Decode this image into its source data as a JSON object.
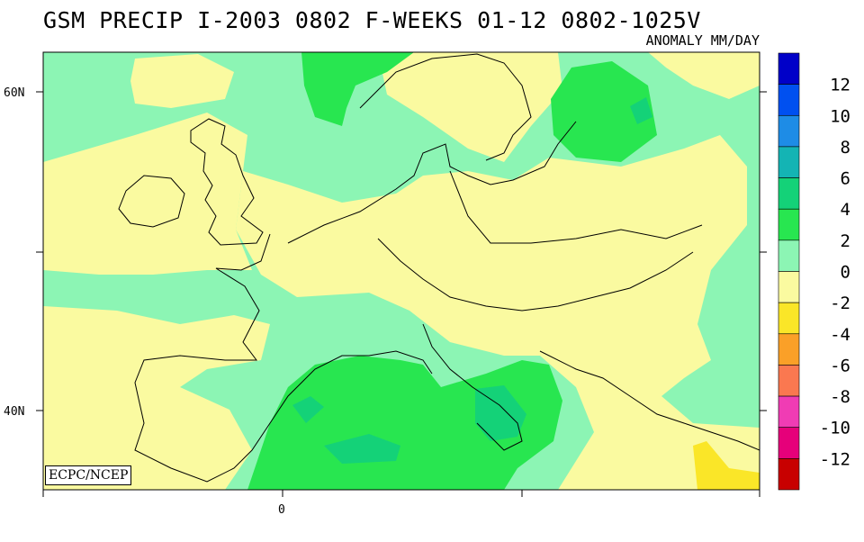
{
  "title": "GSM PRECIP  I-2003 0802 F-WEEKS 01-12 0802-1025V",
  "subtitle": "ANOMALY MM/DAY",
  "credit": "ECPC/NCEP",
  "axes": {
    "lat_labels": [
      "60N",
      "40N"
    ],
    "lon_labels": [
      "0"
    ]
  },
  "colorbar": {
    "labels": [
      "12",
      "10",
      "8",
      "6",
      "4",
      "2",
      "0",
      "-2",
      "-4",
      "-6",
      "-8",
      "-10",
      "-12"
    ],
    "colors": [
      "#0000c8",
      "#0050f0",
      "#1e8ce6",
      "#14b4b4",
      "#14d278",
      "#28e650",
      "#8cf5b4",
      "#fafaa0",
      "#fae628",
      "#faa028",
      "#fa7850",
      "#f03cb4",
      "#e6007a",
      "#c80000"
    ]
  },
  "field_colors": {
    "neg0_2": "#fafaa0",
    "neg2_4": "#fae628",
    "pos0_2": "#8cf5b4",
    "pos2_4": "#28e650",
    "pos4_6": "#14d278"
  }
}
